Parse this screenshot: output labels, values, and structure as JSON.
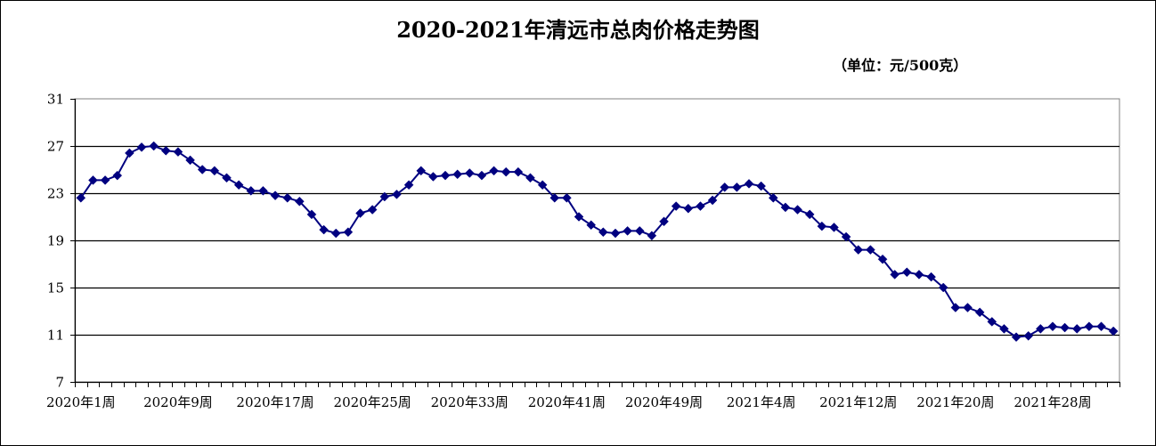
{
  "chart_data": {
    "type": "line",
    "title": "2020-2021年清远市总肉价格走势图",
    "unit_label": "（单位：元/500克）",
    "xlabel": "",
    "ylabel": "",
    "ylim": [
      7,
      31
    ],
    "yticks": [
      7,
      11,
      15,
      19,
      23,
      27,
      31
    ],
    "grid": true,
    "x_tick_labels": [
      "2020年1周",
      "2020年9周",
      "2020年17周",
      "2020年25周",
      "2020年33周",
      "2020年41周",
      "2020年49周",
      "2021年4周",
      "2021年12周",
      "2021年20周",
      "2021年28周"
    ],
    "x_tick_positions": [
      0,
      8,
      16,
      24,
      32,
      40,
      48,
      56,
      64,
      72,
      80
    ],
    "series": [
      {
        "color": "#000080",
        "values": [
          22.6,
          24.1,
          24.1,
          24.5,
          26.4,
          26.9,
          27.0,
          26.6,
          26.5,
          25.8,
          25.0,
          24.9,
          24.3,
          23.7,
          23.2,
          23.2,
          22.8,
          22.6,
          22.3,
          21.2,
          19.9,
          19.6,
          19.7,
          21.3,
          21.6,
          22.7,
          22.9,
          23.7,
          24.9,
          24.4,
          24.5,
          24.6,
          24.7,
          24.5,
          24.9,
          24.8,
          24.8,
          24.3,
          23.7,
          22.6,
          22.6,
          21.0,
          20.3,
          19.7,
          19.6,
          19.8,
          19.8,
          19.4,
          20.6,
          21.9,
          21.7,
          21.9,
          22.4,
          23.5,
          23.5,
          23.8,
          23.6,
          22.6,
          21.8,
          21.6,
          21.2,
          20.2,
          20.1,
          19.3,
          18.2,
          18.2,
          17.4,
          16.1,
          16.3,
          16.1,
          15.9,
          15.0,
          13.3,
          13.3,
          12.9,
          12.1,
          11.5,
          10.8,
          10.9,
          11.5,
          11.7,
          11.6,
          11.5,
          11.7,
          11.7,
          11.3
        ]
      }
    ]
  }
}
